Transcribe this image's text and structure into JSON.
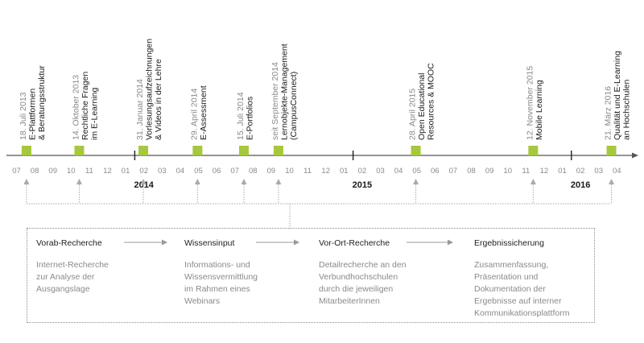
{
  "colors": {
    "marker": "#a6c83c",
    "axis": "#555555",
    "tick_label": "#8a8a8a",
    "date": "#8a8a8a",
    "title": "#1a1a1a",
    "connector": "#aaaaaa",
    "arrow": "#999999"
  },
  "timeline": {
    "month_labels": [
      "07",
      "08",
      "09",
      "10",
      "11",
      "12",
      "01",
      "02",
      "03",
      "04",
      "05",
      "06",
      "07",
      "08",
      "09",
      "10",
      "11",
      "12",
      "01",
      "02",
      "03",
      "04",
      "05",
      "06",
      "07",
      "08",
      "09",
      "10",
      "11",
      "12",
      "01",
      "02",
      "03",
      "04"
    ],
    "years": [
      {
        "label": "2014",
        "month_index": 7
      },
      {
        "label": "2015",
        "month_index": 19
      },
      {
        "label": "2016",
        "month_index": 31
      }
    ],
    "year_separator_indices": [
      6,
      18,
      30
    ],
    "events": [
      {
        "date": "18. Juli 2013",
        "title": [
          "E-Plattformen",
          "& Beratungsstruktur"
        ],
        "month_pos": 0.55
      },
      {
        "date": "14. Oktober 2013",
        "title": [
          "Rechtliche Fragen",
          "im E-Learning"
        ],
        "month_pos": 3.45
      },
      {
        "date": "31. Januar 2014",
        "title": [
          "Vorlesungsaufzeichnungen",
          "& Videos in der Lehre"
        ],
        "month_pos": 6.97
      },
      {
        "date": "29. April 2014",
        "title": [
          "E-Assessment"
        ],
        "month_pos": 9.95
      },
      {
        "date": "15. Juli 2014",
        "title": [
          "E-Portfolios"
        ],
        "month_pos": 12.5
      },
      {
        "date": "seit September 2014",
        "title": [
          "Lernobjekte-Management",
          "(CampusConnect)"
        ],
        "month_pos": 14.4
      },
      {
        "date": "28. April 2015",
        "title": [
          "Open Educational",
          "Resources & MOOC"
        ],
        "month_pos": 21.95
      },
      {
        "date": "12. November 2015",
        "title": [
          "Mobile Learning"
        ],
        "month_pos": 28.4
      },
      {
        "date": "21. März 2016",
        "title": [
          "Qualität und E-Learning",
          "an Hochschulen"
        ],
        "month_pos": 32.7
      }
    ]
  },
  "process": {
    "steps": [
      {
        "title": "Vorab-Recherche",
        "description": "Internet-Recherche\nzur Analyse der\nAusgangslage"
      },
      {
        "title": "Wissensinput",
        "description": "Informations- und\nWissensvermittlung\nim Rahmen eines\nWebinars"
      },
      {
        "title": "Vor-Ort-Recherche",
        "description": "Detailrecherche an den\nVerbundhochschulen\ndurch die jeweiligen\nMitarbeiterInnen"
      },
      {
        "title": "Ergebnissicherung",
        "description": "Zusammenfassung,\nPräsentation und\nDokumentation der\nErgebnisse auf interner\nKommunikationsplattform"
      }
    ]
  }
}
